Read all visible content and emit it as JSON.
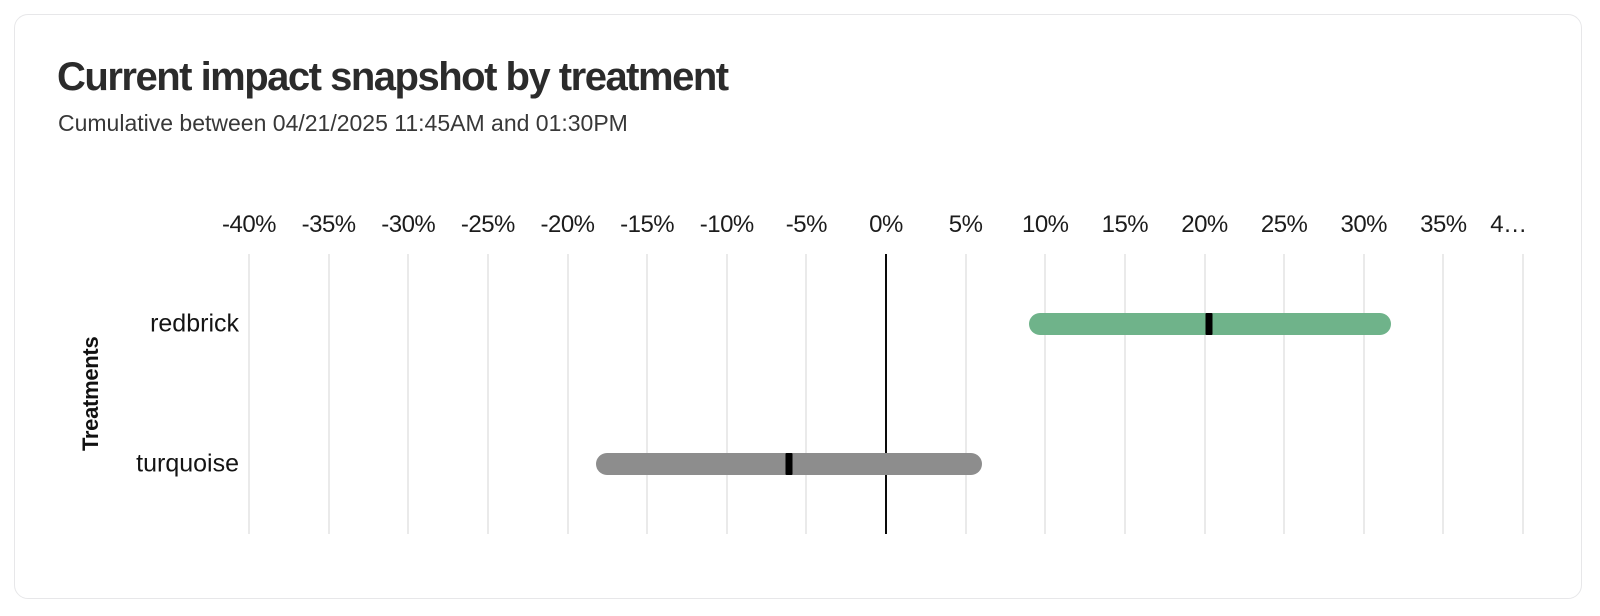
{
  "card": {
    "background": "#ffffff",
    "border_color": "#e7e7e9"
  },
  "chart_data": {
    "type": "bar",
    "subtype": "horizontal-interval-bars-with-point-estimate",
    "title": "Current impact snapshot by treatment",
    "subtitle": "Cumulative between 04/21/2025 11:45AM and 01:30PM",
    "ylabel": "Treatments",
    "xlabel": "",
    "x_unit": "%",
    "xlim": [
      -40,
      40
    ],
    "grid": "vertical",
    "zero_line": true,
    "zero_line_color": "#0a0a0a",
    "grid_color": "#eaeaea",
    "marker_color": "#000000",
    "categories": [
      "redbrick",
      "turquoise"
    ],
    "x_ticks": [
      -40,
      -35,
      -30,
      -25,
      -20,
      -15,
      -10,
      -5,
      0,
      5,
      10,
      15,
      20,
      25,
      30,
      35,
      40
    ],
    "x_tick_labels": [
      "-40%",
      "-35%",
      "-30%",
      "-25%",
      "-20%",
      "-15%",
      "-10%",
      "-5%",
      "0%",
      "5%",
      "10%",
      "15%",
      "20%",
      "25%",
      "30%",
      "35%",
      "4…"
    ],
    "series": [
      {
        "name": "redbrick",
        "range_low_pct": 9.0,
        "range_high_pct": 31.7,
        "point_pct": 20.3,
        "color": "#6FB38A"
      },
      {
        "name": "turquoise",
        "range_low_pct": -18.2,
        "range_high_pct": 6.0,
        "point_pct": -6.1,
        "color": "#8D8D8D"
      }
    ]
  }
}
